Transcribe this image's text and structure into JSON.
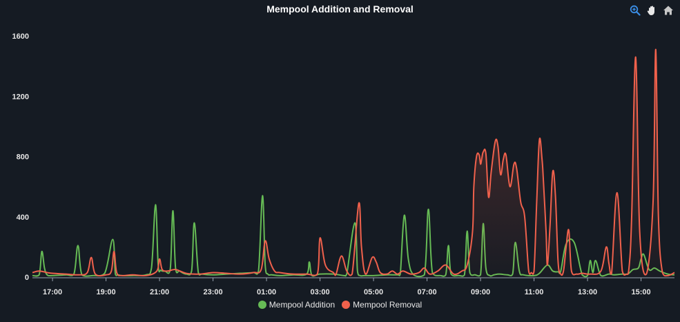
{
  "chart_data": {
    "type": "line",
    "title": "Mempool Addition and Removal",
    "ylim": [
      0,
      1600
    ],
    "yticks": [
      0,
      400,
      800,
      1200,
      1600
    ],
    "xlim": [
      16.25,
      40.25
    ],
    "xtick_labels": [
      "17:00",
      "19:00",
      "21:00",
      "23:00",
      "01:00",
      "03:00",
      "05:00",
      "07:00",
      "09:00",
      "11:00",
      "13:00",
      "15:00"
    ],
    "xtick_positions": [
      17,
      19,
      21,
      23,
      25,
      27,
      29,
      31,
      33,
      35,
      37,
      39
    ],
    "colors": {
      "addition": "#66bb55",
      "removal": "#f0614c",
      "axis": "#9aa4b1",
      "text": "#e6e6e6",
      "icon_active": "#3b8fe8",
      "icon": "#c8c8c8"
    },
    "series": [
      {
        "name": "Mempool Addition",
        "key": "addition",
        "x": [
          16.25,
          16.5,
          16.6,
          16.7,
          16.8,
          17.0,
          17.5,
          17.8,
          17.95,
          18.1,
          18.5,
          18.95,
          19.25,
          19.35,
          19.45,
          19.6,
          20.0,
          20.5,
          20.7,
          20.85,
          20.95,
          21.05,
          21.2,
          21.4,
          21.5,
          21.6,
          21.75,
          22.0,
          22.2,
          22.3,
          22.45,
          22.6,
          23.0,
          23.5,
          24.0,
          24.5,
          24.7,
          24.85,
          24.95,
          25.05,
          25.2,
          25.5,
          26.0,
          26.5,
          26.6,
          26.7,
          27.0,
          27.5,
          27.9,
          28.0,
          28.3,
          28.4,
          28.5,
          28.65,
          29.0,
          29.5,
          29.9,
          30.0,
          30.15,
          30.3,
          30.5,
          30.9,
          31.05,
          31.2,
          31.5,
          31.7,
          31.8,
          31.9,
          32.2,
          32.4,
          32.5,
          32.6,
          32.8,
          33.0,
          33.1,
          33.2,
          33.35,
          33.5,
          33.7,
          34.0,
          34.2,
          34.3,
          34.45,
          34.6,
          35.0,
          35.2,
          35.5,
          35.7,
          35.9,
          36.0,
          36.2,
          36.5,
          36.8,
          37.0,
          37.1,
          37.2,
          37.3,
          37.5,
          37.8,
          38.0,
          38.3,
          38.5,
          38.7,
          38.9,
          39.0,
          39.1,
          39.3,
          39.5,
          39.7,
          40.0,
          40.25
        ],
        "y": [
          10,
          15,
          170,
          60,
          15,
          10,
          15,
          20,
          210,
          15,
          10,
          25,
          250,
          20,
          15,
          10,
          10,
          15,
          60,
          480,
          80,
          45,
          40,
          50,
          440,
          60,
          40,
          20,
          40,
          360,
          30,
          20,
          15,
          20,
          25,
          30,
          40,
          540,
          80,
          20,
          15,
          10,
          15,
          20,
          100,
          10,
          20,
          20,
          10,
          20,
          360,
          40,
          10,
          10,
          10,
          15,
          15,
          20,
          410,
          120,
          15,
          15,
          450,
          30,
          10,
          15,
          210,
          20,
          10,
          15,
          305,
          30,
          15,
          15,
          355,
          60,
          10,
          15,
          20,
          15,
          20,
          230,
          40,
          15,
          10,
          25,
          80,
          40,
          35,
          40,
          220,
          230,
          15,
          10,
          110,
          30,
          110,
          10,
          20,
          15,
          20,
          20,
          50,
          60,
          120,
          150,
          50,
          60,
          40,
          20,
          15
        ],
        "fill": false
      },
      {
        "name": "Mempool Removal",
        "key": "removal",
        "x": [
          16.25,
          16.5,
          16.8,
          17.0,
          17.5,
          18.0,
          18.3,
          18.45,
          18.6,
          19.0,
          19.2,
          19.3,
          19.4,
          19.6,
          20.0,
          20.5,
          20.9,
          21.0,
          21.1,
          21.3,
          21.6,
          22.0,
          22.5,
          23.0,
          23.5,
          24.0,
          24.5,
          24.8,
          24.95,
          25.1,
          25.3,
          25.5,
          26.0,
          26.5,
          26.9,
          27.0,
          27.2,
          27.5,
          27.6,
          27.8,
          28.0,
          28.2,
          28.45,
          28.55,
          28.7,
          28.95,
          29.1,
          29.25,
          29.5,
          29.7,
          29.9,
          30.1,
          30.4,
          30.7,
          30.9,
          31.1,
          31.4,
          31.7,
          32.0,
          32.3,
          32.5,
          32.7,
          32.75,
          32.85,
          32.95,
          33.0,
          33.05,
          33.1,
          33.2,
          33.3,
          33.4,
          33.55,
          33.65,
          33.75,
          33.85,
          33.95,
          34.1,
          34.25,
          34.35,
          34.5,
          34.65,
          34.8,
          34.9,
          35.0,
          35.1,
          35.2,
          35.3,
          35.35,
          35.45,
          35.5,
          35.6,
          35.7,
          35.8,
          35.9,
          36.0,
          36.1,
          36.2,
          36.3,
          36.4,
          36.6,
          36.8,
          37.1,
          37.5,
          37.7,
          37.8,
          37.9,
          38.1,
          38.3,
          38.45,
          38.55,
          38.65,
          38.8,
          38.95,
          39.2,
          39.45,
          39.55,
          39.65,
          39.8,
          40.0,
          40.25
        ],
        "y": [
          30,
          40,
          30,
          25,
          20,
          15,
          30,
          130,
          20,
          15,
          40,
          170,
          30,
          10,
          15,
          10,
          40,
          120,
          50,
          40,
          50,
          25,
          20,
          30,
          25,
          20,
          30,
          50,
          240,
          120,
          40,
          30,
          20,
          20,
          20,
          260,
          80,
          30,
          20,
          140,
          40,
          20,
          490,
          200,
          20,
          130,
          100,
          30,
          20,
          40,
          20,
          40,
          20,
          30,
          60,
          20,
          40,
          80,
          20,
          40,
          80,
          300,
          600,
          800,
          810,
          750,
          790,
          830,
          820,
          530,
          700,
          900,
          870,
          680,
          780,
          810,
          600,
          750,
          720,
          500,
          400,
          40,
          30,
          40,
          500,
          910,
          780,
          640,
          300,
          80,
          350,
          700,
          540,
          100,
          20,
          40,
          200,
          310,
          40,
          20,
          25,
          20,
          40,
          200,
          90,
          25,
          560,
          40,
          20,
          60,
          400,
          1460,
          300,
          20,
          500,
          1510,
          400,
          30,
          10,
          30
        ]
      }
    ],
    "legend": [
      {
        "label": "Mempool Addition",
        "color": "#66bb55"
      },
      {
        "label": "Mempool Removal",
        "color": "#f0614c"
      }
    ]
  },
  "toolbar": {
    "icons": [
      "zoom-icon",
      "pan-icon",
      "home-icon"
    ]
  }
}
